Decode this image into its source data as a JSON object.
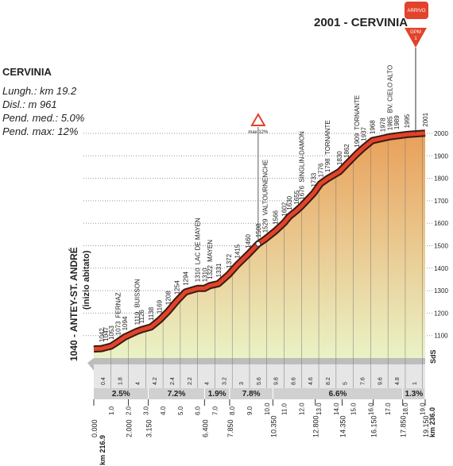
{
  "chart_data": {
    "type": "area",
    "title": "2001 - CERVINIA",
    "info_title": "CERVINIA",
    "info": [
      "Lungh.: km 19.2",
      "Disl.: m 961",
      "Pend. med.: 5.0%",
      "Pend. max: 12%"
    ],
    "start_label": "1040 - ANTEY-ST. ANDRÉ",
    "start_note": "(inizio abitato)",
    "finish_badge": "ARRIVO",
    "gpm_badge": "GPM",
    "gpm_rank": "1",
    "max_label": "max 12%",
    "max_x": 9.5,
    "sds": "SdS",
    "x": [
      0,
      0.45,
      0.7,
      1.0,
      1.4,
      1.8,
      2.5,
      2.75,
      3.3,
      3.8,
      4.3,
      4.8,
      5.3,
      6.0,
      6.4,
      6.7,
      7.2,
      7.8,
      8.3,
      8.9,
      9.5,
      9.9,
      10.5,
      11.0,
      11.3,
      11.7,
      12.0,
      12.7,
      13.1,
      13.5,
      14.2,
      14.6,
      15.2,
      15.6,
      16.1,
      16.7,
      17.1,
      17.5,
      18.1,
      19.15
    ],
    "values": [
      1040,
      1042,
      1047,
      1053,
      1073,
      1094,
      1119,
      1126,
      1138,
      1169,
      1208,
      1254,
      1294,
      1310,
      1310,
      1322,
      1331,
      1372,
      1415,
      1460,
      1508,
      1529,
      1566,
      1602,
      1630,
      1655,
      1676,
      1733,
      1776,
      1798,
      1830,
      1862,
      1909,
      1937,
      1968,
      1978,
      1985,
      1989,
      1995,
      2001
    ],
    "places": [
      {
        "x": 1.4,
        "label": "FERNAZ"
      },
      {
        "x": 2.5,
        "label": "BUISSON"
      },
      {
        "x": 6.0,
        "label": "LAC DE MAYEN"
      },
      {
        "x": 6.7,
        "label": "MAYEN"
      },
      {
        "x": 9.9,
        "label": "VALTOURNENCHE"
      },
      {
        "x": 12.0,
        "label": "SINGLIN-DAMON"
      },
      {
        "x": 13.5,
        "label": "TORNANTE"
      },
      {
        "x": 15.2,
        "label": "TORNANTE"
      },
      {
        "x": 17.1,
        "label": "BV. CIELO ALTO"
      }
    ],
    "km_gradients": [
      0.4,
      1.8,
      4.0,
      4.2,
      2.4,
      2.2,
      4.0,
      3.2,
      3.0,
      5.6,
      9.8,
      8.6,
      4.6,
      8.2,
      5.0,
      7.6,
      9.6,
      4.8,
      1.0
    ],
    "segments": [
      {
        "value": 2.5,
        "label": "2.5%",
        "from": 0,
        "to": 3.15
      },
      {
        "value": 7.2,
        "label": "7.2%",
        "from": 3.15,
        "to": 6.4
      },
      {
        "value": 1.9,
        "label": "1.9%",
        "from": 6.4,
        "to": 7.85
      },
      {
        "value": 7.8,
        "label": "7.8%",
        "from": 7.85,
        "to": 10.35
      },
      {
        "value": 6.6,
        "label": "6.6%",
        "from": 10.35,
        "to": 17.85
      },
      {
        "value": 1.3,
        "label": "1.3%",
        "from": 17.85,
        "to": 19.15
      }
    ],
    "xlim": [
      0,
      19.15
    ],
    "xticks": [
      {
        "value": 1,
        "label": "1.0"
      },
      {
        "value": 2,
        "label": "2.0"
      },
      {
        "value": 3,
        "label": "3.0"
      },
      {
        "value": 4,
        "label": "4.0"
      },
      {
        "value": 5,
        "label": "5.0"
      },
      {
        "value": 6,
        "label": "6.0"
      },
      {
        "value": 7,
        "label": "7.0"
      },
      {
        "value": 8,
        "label": "8.0"
      },
      {
        "value": 9,
        "label": "9.0"
      },
      {
        "value": 10,
        "label": "10.0"
      },
      {
        "value": 11,
        "label": "11.0"
      },
      {
        "value": 12,
        "label": "12.0"
      },
      {
        "value": 13,
        "label": "13.0"
      },
      {
        "value": 14,
        "label": "14.0"
      },
      {
        "value": 15,
        "label": "15.0"
      },
      {
        "value": 16,
        "label": "16.0"
      },
      {
        "value": 17,
        "label": "17.0"
      },
      {
        "value": 18,
        "label": "18.0"
      },
      {
        "value": 19,
        "label": "19.0"
      }
    ],
    "waypoints": [
      {
        "value": 0,
        "label": "0.000"
      },
      {
        "value": 2,
        "label": "2.000"
      },
      {
        "value": 3.15,
        "label": "3.150"
      },
      {
        "value": 6.4,
        "label": "6.400"
      },
      {
        "value": 7.85,
        "label": "7.850"
      },
      {
        "value": 10.35,
        "label": "10.350"
      },
      {
        "value": 12.8,
        "label": "12.800"
      },
      {
        "value": 14.35,
        "label": "14.350"
      },
      {
        "value": 16.15,
        "label": "16.150"
      },
      {
        "value": 17.85,
        "label": "17.850"
      },
      {
        "value": 19.15,
        "label": "19.150"
      }
    ],
    "km_start": "km 216.9",
    "km_end": "km 236.0",
    "ylim": [
      1000,
      2000
    ],
    "yticks": [
      1100,
      1200,
      1300,
      1400,
      1500,
      1600,
      1700,
      1800,
      1900,
      2000
    ],
    "grid": true,
    "fill_top": "#e9a05a",
    "fill_bottom": "#eaf2c6",
    "color": "#e2432b"
  }
}
